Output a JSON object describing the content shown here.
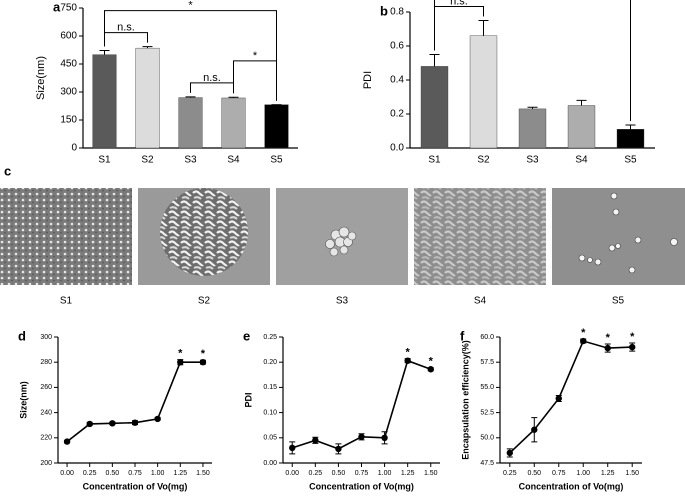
{
  "chart_data": [
    {
      "type": "bar",
      "label": "a",
      "y_label": "Size(nm)",
      "categories": [
        "S1",
        "S2",
        "S3",
        "S4",
        "S5"
      ],
      "values": [
        500,
        535,
        270,
        268,
        232
      ],
      "errors": [
        22,
        8,
        4,
        4,
        0
      ],
      "colors": [
        "#5a5a5a",
        "#dcdcdc",
        "#8c8c8c",
        "#adadad",
        "#000000"
      ],
      "ylim": [
        0,
        750
      ],
      "yticks": [
        0,
        150,
        300,
        450,
        600,
        750
      ],
      "annotations": [
        {
          "text": "n.s.",
          "between": [
            "S1",
            "S2"
          ]
        },
        {
          "text": "n.s.",
          "between": [
            "S3",
            "S4"
          ]
        },
        {
          "text": "*",
          "between": [
            "S4",
            "S5"
          ]
        },
        {
          "text": "*",
          "between": [
            "S1",
            "S5"
          ]
        }
      ]
    },
    {
      "type": "bar",
      "label": "b",
      "y_label": "PDI",
      "categories": [
        "S1",
        "S2",
        "S3",
        "S4",
        "S5"
      ],
      "values": [
        0.48,
        0.66,
        0.23,
        0.25,
        0.11
      ],
      "errors": [
        0.07,
        0.09,
        0.01,
        0.03,
        0.025
      ],
      "colors": [
        "#5a5a5a",
        "#dcdcdc",
        "#8c8c8c",
        "#adadad",
        "#000000"
      ],
      "ylim": [
        0,
        0.8
      ],
      "yticks": [
        {
          "value": 0,
          "label": "0.0"
        },
        0.2,
        0.4,
        0.6,
        0.8
      ],
      "annotations": [
        {
          "text": "n.s.",
          "between": [
            "S1",
            "S2"
          ]
        },
        {
          "text": "*",
          "between": [
            "S1",
            "S5"
          ]
        }
      ]
    },
    {
      "type": "line",
      "label": "d",
      "y_label": "Size(nm)",
      "x_label": "Concentration of Vo(mg)",
      "color": "#000000",
      "x": [
        0,
        0.25,
        0.5,
        0.75,
        1,
        1.25,
        1.5
      ],
      "values": [
        217,
        231,
        231.5,
        232,
        235,
        280,
        280
      ],
      "errors": [
        1,
        1,
        1,
        1.5,
        1,
        2,
        1.5
      ],
      "xlim": [
        -0.1,
        1.6
      ],
      "xticks": [
        {
          "value": 0,
          "label": "0.00"
        },
        0.25,
        {
          "value": 0.5,
          "label": "0.50"
        },
        0.75,
        {
          "value": 1,
          "label": "1.00"
        },
        1.25,
        {
          "value": 1.5,
          "label": "1.50"
        }
      ],
      "ylim": [
        200,
        300
      ],
      "yticks": [
        200,
        220,
        240,
        260,
        280,
        300
      ],
      "annotations": [
        {
          "text": "*",
          "x": 1.25
        },
        {
          "text": "*",
          "x": 1.5
        }
      ]
    },
    {
      "type": "line",
      "label": "e",
      "y_label": "PDI",
      "x_label": "Concentration of Vo(mg)",
      "color": "#000000",
      "x": [
        0,
        0.25,
        0.5,
        0.75,
        1,
        1.25,
        1.5
      ],
      "values": [
        0.03,
        0.045,
        0.028,
        0.052,
        0.05,
        0.203,
        0.186
      ],
      "errors": [
        0.012,
        0.006,
        0.01,
        0.006,
        0.012,
        0.004,
        0.003
      ],
      "xlim": [
        -0.1,
        1.6
      ],
      "xticks": [
        {
          "value": 0,
          "label": "0.00"
        },
        0.25,
        {
          "value": 0.5,
          "label": "0.50"
        },
        0.75,
        {
          "value": 1,
          "label": "1.00"
        },
        1.25,
        {
          "value": 1.5,
          "label": "1.50"
        }
      ],
      "ylim": [
        0,
        0.25
      ],
      "yticks": [
        {
          "value": 0,
          "label": "0.00"
        },
        0.05,
        {
          "value": 0.1,
          "label": "0.10"
        },
        0.15,
        {
          "value": 0.2,
          "label": "0.20"
        },
        0.25
      ],
      "annotations": [
        {
          "text": "*",
          "x": 1.25
        },
        {
          "text": "*",
          "x": 1.5
        }
      ]
    },
    {
      "type": "line",
      "label": "f",
      "y_label": "Encapsulation efficiency(%)",
      "x_label": "Concentration of Vo(mg)",
      "color": "#000000",
      "x": [
        0.25,
        0.5,
        0.75,
        1,
        1.25,
        1.5
      ],
      "values": [
        48.5,
        50.8,
        53.9,
        59.6,
        58.9,
        59.0
      ],
      "errors": [
        0.4,
        1.2,
        0.3,
        0.2,
        0.4,
        0.4
      ],
      "xlim": [
        0.15,
        1.6
      ],
      "xticks": [
        0.25,
        {
          "value": 0.5,
          "label": "0.50"
        },
        0.75,
        {
          "value": 1,
          "label": "1.00"
        },
        1.25,
        {
          "value": 1.5,
          "label": "1.50"
        }
      ],
      "ylim": [
        47.5,
        60
      ],
      "yticks": [
        47.5,
        {
          "value": 50,
          "label": "50.0"
        },
        52.5,
        {
          "value": 55,
          "label": "55.0"
        },
        57.5,
        {
          "value": 60,
          "label": "60.0"
        }
      ],
      "annotations": [
        {
          "text": "*",
          "x": 1
        },
        {
          "text": "*",
          "x": 1.25
        },
        {
          "text": "*",
          "x": 1.5
        }
      ]
    }
  ],
  "micrographs": {
    "label": "c",
    "captions": [
      "S1",
      "S2",
      "S3",
      "S4",
      "S5"
    ]
  }
}
